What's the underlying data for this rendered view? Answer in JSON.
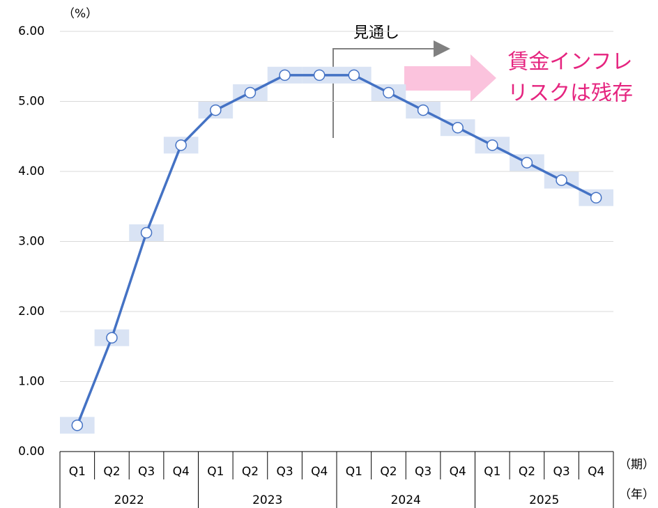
{
  "chart_data": {
    "type": "line",
    "categories": [
      "Q1",
      "Q2",
      "Q3",
      "Q4",
      "Q1",
      "Q2",
      "Q3",
      "Q4",
      "Q1",
      "Q2",
      "Q3",
      "Q4",
      "Q1",
      "Q2",
      "Q3",
      "Q4"
    ],
    "years": [
      "2022",
      "2023",
      "2024",
      "2025"
    ],
    "values": [
      0.375,
      1.625,
      3.125,
      4.375,
      4.875,
      5.125,
      5.375,
      5.375,
      5.375,
      5.125,
      4.875,
      4.625,
      4.375,
      4.125,
      3.875,
      3.625
    ],
    "color": "#4472c4",
    "ylim": [
      0,
      6
    ],
    "yticks": [
      {
        "value": 0,
        "label": "0.00"
      },
      {
        "value": 1,
        "label": "1.00"
      },
      {
        "value": 2,
        "label": "2.00"
      },
      {
        "value": 3,
        "label": "3.00"
      },
      {
        "value": 4,
        "label": "4.00"
      },
      {
        "value": 5,
        "label": "5.00"
      },
      {
        "value": 6,
        "label": "6.00"
      }
    ],
    "grid": true,
    "y_unit": "（%）",
    "x_label": "（期）",
    "year_label": "（年）",
    "annotations": [
      "見通し",
      "賃金インフレ",
      "リスクは残存"
    ]
  }
}
